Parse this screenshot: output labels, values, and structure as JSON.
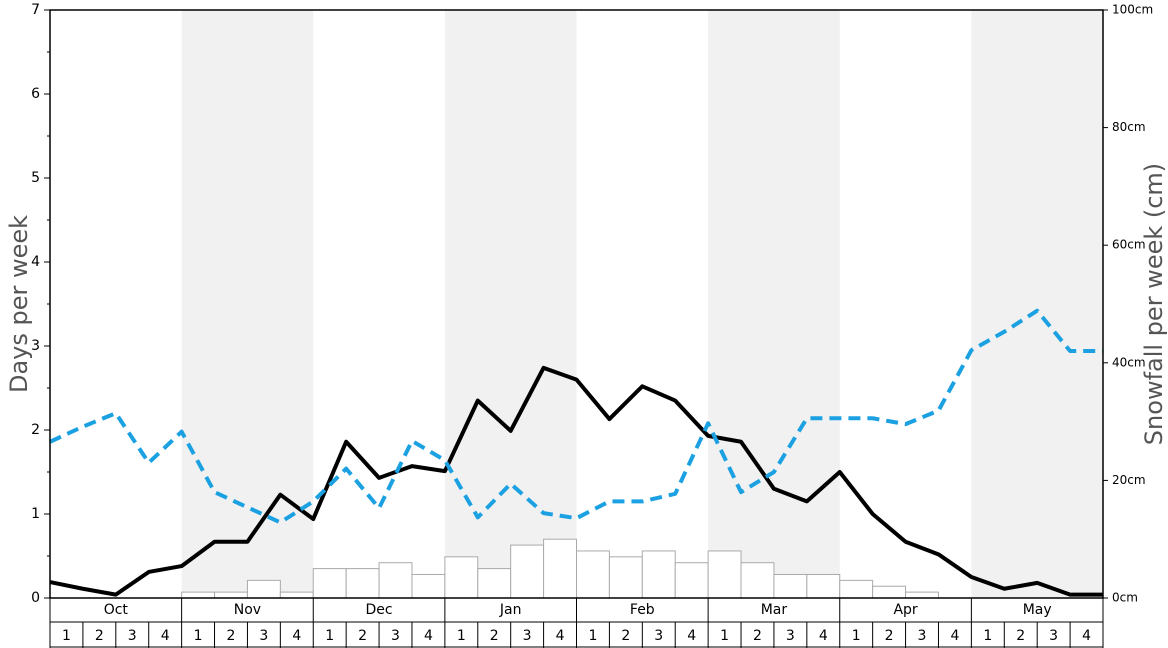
{
  "chart_data": {
    "type": "line",
    "ylabel": "Days per week",
    "y2label": "Snowfall per week (cm)",
    "months": [
      "Oct",
      "Nov",
      "Dec",
      "Jan",
      "Feb",
      "Mar",
      "Apr",
      "May"
    ],
    "weeks": [
      "1",
      "2",
      "3",
      "4"
    ],
    "ylim": [
      0,
      7
    ],
    "yticks": [
      0,
      1,
      2,
      3,
      4,
      5,
      6,
      7
    ],
    "y2lim": [
      0,
      100
    ],
    "y2ticks": [
      {
        "value": 0,
        "label": "0cm"
      },
      {
        "value": 20,
        "label": "20cm"
      },
      {
        "value": 40,
        "label": "40cm"
      },
      {
        "value": 60,
        "label": "60cm"
      },
      {
        "value": 80,
        "label": "80cm"
      },
      {
        "value": 100,
        "label": "100cm"
      }
    ],
    "band_color": "#f1f1f1",
    "series": [
      {
        "color": "#000000",
        "dashed": false,
        "values": [
          0.19,
          0.11,
          0.04,
          0.31,
          0.38,
          0.67,
          0.67,
          1.23,
          0.94,
          1.86,
          1.43,
          1.57,
          1.51,
          2.35,
          1.99,
          2.74,
          2.6,
          2.13,
          2.52,
          2.35,
          1.93,
          1.86,
          1.3,
          1.15,
          1.5,
          1.0,
          0.67,
          0.52,
          0.25,
          0.11,
          0.18,
          0.04,
          0.04
        ]
      },
      {
        "color": "#1ba1e2",
        "dashed": true,
        "values": [
          1.86,
          2.04,
          2.2,
          1.61,
          1.98,
          1.26,
          1.08,
          0.9,
          1.15,
          1.54,
          1.07,
          1.87,
          1.64,
          0.96,
          1.36,
          1.01,
          0.95,
          1.15,
          1.15,
          1.24,
          2.08,
          1.26,
          1.5,
          2.14,
          2.14,
          2.14,
          2.07,
          2.23,
          2.95,
          3.17,
          3.42,
          2.94,
          2.94
        ]
      }
    ],
    "bars": {
      "axis": "y2",
      "color": "#ffffff",
      "edge": "#aaaaaa",
      "values": [
        0,
        0,
        0,
        0,
        1,
        1,
        3,
        1,
        5,
        5,
        6,
        4,
        7,
        5,
        9,
        10,
        8,
        7,
        8,
        6,
        8,
        6,
        4,
        4,
        3,
        2,
        1,
        0,
        0,
        0,
        0,
        0
      ]
    }
  }
}
